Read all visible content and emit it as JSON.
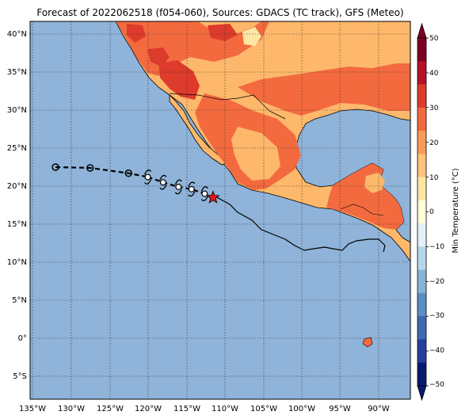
{
  "title": "Forecast of 2022062518 (f054-060), Sources: GDACS (TC track), GFS (Meteo)",
  "lon_ticks": [
    "135°W",
    "130°W",
    "125°W",
    "120°W",
    "115°W",
    "110°W",
    "105°W",
    "100°W",
    "95°W",
    "90°W"
  ],
  "lat_ticks": [
    "40°N",
    "35°N",
    "30°N",
    "25°N",
    "20°N",
    "15°N",
    "10°N",
    "5°N",
    "0°",
    "5°S"
  ],
  "colorbar": {
    "label": "Min Temperature (°C)",
    "ticks": [
      "50",
      "40",
      "30",
      "20",
      "10",
      "0",
      "−10",
      "−20",
      "−30",
      "−40",
      "−50"
    ],
    "range": [
      -50,
      50
    ],
    "colors": [
      "#0a1a6e",
      "#273f9a",
      "#3f69ae",
      "#5b8fc2",
      "#86b3d6",
      "#b6d7e9",
      "#e2f1f7",
      "#ffffd9",
      "#fee6a3",
      "#fdc27b",
      "#fb9a58",
      "#f36a3f",
      "#dd3b2b",
      "#b7112a",
      "#7d0024"
    ]
  },
  "colors": {
    "ocean": "#8fb3d9",
    "land_warm": "#f36a3f",
    "land_mild": "#fdb86b",
    "land_hot": "#dd3b2b",
    "track": "#000000",
    "current_position": "#e8121a"
  },
  "track": {
    "past_positions": [
      {
        "lon": -132.0,
        "lat": 22.5
      },
      {
        "lon": -127.5,
        "lat": 22.4
      },
      {
        "lon": -122.5,
        "lat": 21.7
      }
    ],
    "forecast_positions": [
      {
        "lon": -120.0,
        "lat": 21.2
      },
      {
        "lon": -118.0,
        "lat": 20.5
      },
      {
        "lon": -116.0,
        "lat": 19.9
      },
      {
        "lon": -114.3,
        "lat": 19.6
      },
      {
        "lon": -112.6,
        "lat": 19.0
      }
    ],
    "current": {
      "lon": -111.5,
      "lat": 18.5
    }
  }
}
